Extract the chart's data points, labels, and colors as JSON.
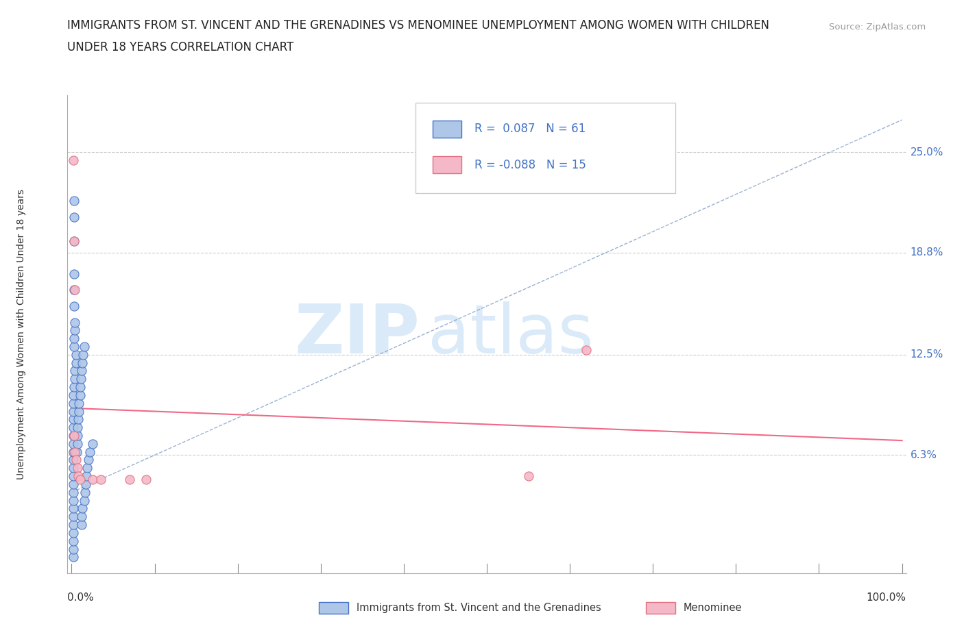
{
  "title_line1": "IMMIGRANTS FROM ST. VINCENT AND THE GRENADINES VS MENOMINEE UNEMPLOYMENT AMONG WOMEN WITH CHILDREN",
  "title_line2": "UNDER 18 YEARS CORRELATION CHART",
  "source": "Source: ZipAtlas.com",
  "ylabel": "Unemployment Among Women with Children Under 18 years",
  "ytick_labels": [
    "25.0%",
    "18.8%",
    "12.5%",
    "6.3%"
  ],
  "ytick_values": [
    0.25,
    0.188,
    0.125,
    0.063
  ],
  "ylim": [
    -0.01,
    0.285
  ],
  "xlim": [
    -0.005,
    1.005
  ],
  "legend1_R": "0.087",
  "legend1_N": "61",
  "legend2_R": "-0.088",
  "legend2_N": "15",
  "blue_face_color": "#aec6e8",
  "blue_edge_color": "#4472c4",
  "pink_face_color": "#f4b8c8",
  "pink_edge_color": "#e07080",
  "blue_trend_color": "#7090c0",
  "pink_trend_color": "#f06080",
  "watermark_color": "#daeaf8",
  "blue_scatter": [
    [
      0.002,
      0.0
    ],
    [
      0.002,
      0.005
    ],
    [
      0.002,
      0.01
    ],
    [
      0.002,
      0.015
    ],
    [
      0.002,
      0.02
    ],
    [
      0.002,
      0.025
    ],
    [
      0.002,
      0.03
    ],
    [
      0.002,
      0.035
    ],
    [
      0.002,
      0.04
    ],
    [
      0.002,
      0.045
    ],
    [
      0.002,
      0.05
    ],
    [
      0.002,
      0.055
    ],
    [
      0.002,
      0.06
    ],
    [
      0.002,
      0.065
    ],
    [
      0.002,
      0.07
    ],
    [
      0.002,
      0.075
    ],
    [
      0.002,
      0.08
    ],
    [
      0.002,
      0.085
    ],
    [
      0.002,
      0.09
    ],
    [
      0.002,
      0.095
    ],
    [
      0.002,
      0.1
    ],
    [
      0.003,
      0.105
    ],
    [
      0.004,
      0.11
    ],
    [
      0.004,
      0.115
    ],
    [
      0.005,
      0.12
    ],
    [
      0.005,
      0.125
    ],
    [
      0.003,
      0.13
    ],
    [
      0.003,
      0.135
    ],
    [
      0.004,
      0.14
    ],
    [
      0.004,
      0.145
    ],
    [
      0.003,
      0.155
    ],
    [
      0.003,
      0.165
    ],
    [
      0.003,
      0.175
    ],
    [
      0.003,
      0.195
    ],
    [
      0.003,
      0.21
    ],
    [
      0.003,
      0.22
    ],
    [
      0.006,
      0.065
    ],
    [
      0.007,
      0.07
    ],
    [
      0.007,
      0.075
    ],
    [
      0.007,
      0.08
    ],
    [
      0.008,
      0.085
    ],
    [
      0.009,
      0.09
    ],
    [
      0.009,
      0.095
    ],
    [
      0.01,
      0.1
    ],
    [
      0.01,
      0.105
    ],
    [
      0.011,
      0.11
    ],
    [
      0.012,
      0.115
    ],
    [
      0.013,
      0.12
    ],
    [
      0.014,
      0.125
    ],
    [
      0.015,
      0.13
    ],
    [
      0.012,
      0.02
    ],
    [
      0.012,
      0.025
    ],
    [
      0.013,
      0.03
    ],
    [
      0.015,
      0.035
    ],
    [
      0.016,
      0.04
    ],
    [
      0.017,
      0.045
    ],
    [
      0.018,
      0.05
    ],
    [
      0.019,
      0.055
    ],
    [
      0.02,
      0.06
    ],
    [
      0.022,
      0.065
    ],
    [
      0.025,
      0.07
    ]
  ],
  "pink_scatter": [
    [
      0.002,
      0.245
    ],
    [
      0.003,
      0.195
    ],
    [
      0.004,
      0.165
    ],
    [
      0.003,
      0.075
    ],
    [
      0.004,
      0.065
    ],
    [
      0.005,
      0.06
    ],
    [
      0.007,
      0.055
    ],
    [
      0.008,
      0.05
    ],
    [
      0.01,
      0.048
    ],
    [
      0.025,
      0.048
    ],
    [
      0.035,
      0.048
    ],
    [
      0.55,
      0.05
    ],
    [
      0.07,
      0.048
    ],
    [
      0.09,
      0.048
    ],
    [
      0.62,
      0.128
    ]
  ],
  "blue_trend_x": [
    0.0,
    1.0
  ],
  "blue_trend_y": [
    0.04,
    0.27
  ],
  "pink_trend_x": [
    0.0,
    1.0
  ],
  "pink_trend_y": [
    0.092,
    0.072
  ]
}
